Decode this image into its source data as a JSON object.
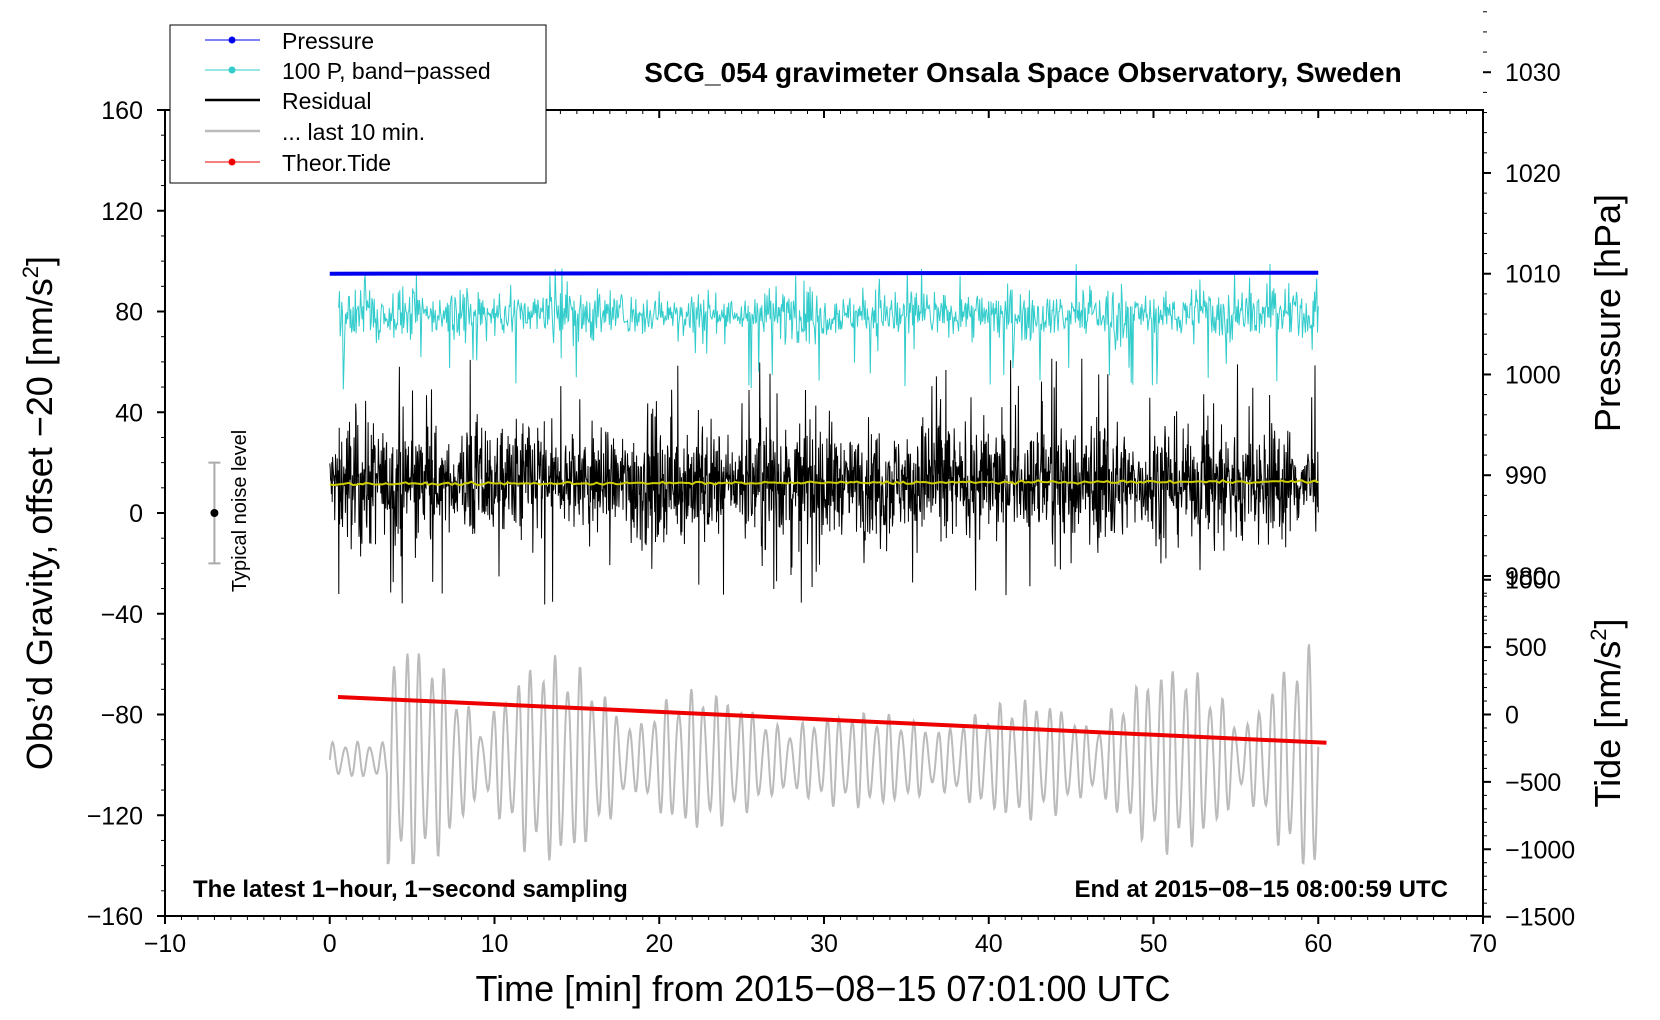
{
  "chart_data": {
    "type": "line",
    "title": "SCG_054 gravimeter Onsala Space Observatory, Sweden",
    "xlabel": "Time [min] from 2015−08−15 07:01:00 UTC",
    "ylabel_left": "Obs’d Gravity, offset −20 [nm/s",
    "ylabel_left_sup": "2",
    "ylabel_left_close": "]",
    "ylabel_right_top": "Pressure [hPa]",
    "ylabel_right_bottom": "Tide [nm/s",
    "ylabel_right_bottom_sup": "2",
    "ylabel_right_bottom_close": "]",
    "xlim": [
      -10,
      70
    ],
    "ylim_left": [
      -160,
      160
    ],
    "x_ticks": [
      {
        "v": -10,
        "label": "−10"
      },
      {
        "v": 0,
        "label": "0"
      },
      {
        "v": 10,
        "label": "10"
      },
      {
        "v": 20,
        "label": "20"
      },
      {
        "v": 30,
        "label": "30"
      },
      {
        "v": 40,
        "label": "40"
      },
      {
        "v": 50,
        "label": "50"
      },
      {
        "v": 60,
        "label": "60"
      },
      {
        "v": 70,
        "label": "70"
      }
    ],
    "y_ticks_left": [
      {
        "v": 160,
        "label": "160"
      },
      {
        "v": 120,
        "label": "120"
      },
      {
        "v": 80,
        "label": "80"
      },
      {
        "v": 40,
        "label": "40"
      },
      {
        "v": 0,
        "label": "0"
      },
      {
        "v": -40,
        "label": "−40"
      },
      {
        "v": -80,
        "label": "−80"
      },
      {
        "v": -120,
        "label": "−120"
      },
      {
        "v": -160,
        "label": "−160"
      }
    ],
    "pressure_axis": {
      "ticks": [
        {
          "v": 1030,
          "label": "1030"
        },
        {
          "v": 1020,
          "label": "1020"
        },
        {
          "v": 1010,
          "label": "1010"
        },
        {
          "v": 1000,
          "label": "1000"
        },
        {
          "v": 990,
          "label": "990"
        },
        {
          "v": 980,
          "label": "980"
        }
      ],
      "ref_hpa": 1010,
      "ref_grav": 95,
      "grav_per_hpa": 4.0
    },
    "tide_axis": {
      "ticks": [
        {
          "v": 1000,
          "label": "1000"
        },
        {
          "v": 500,
          "label": "500"
        },
        {
          "v": 0,
          "label": "0"
        },
        {
          "v": -500,
          "label": "−500"
        },
        {
          "v": -1000,
          "label": "−1000"
        },
        {
          "v": -1500,
          "label": "−1500"
        }
      ],
      "ref_tide": 0,
      "ref_grav": -80,
      "grav_per_unit": 0.0535
    },
    "legend": [
      {
        "label": "Pressure",
        "color": "#0000ee",
        "marker": true
      },
      {
        "label": "100 P, band−passed",
        "color": "#33cccc",
        "marker": true
      },
      {
        "label": "Residual",
        "color": "#000000",
        "marker": false
      },
      {
        "label": "... last 10 min.",
        "color": "#bbbbbb",
        "marker": false
      },
      {
        "label": "Theor.Tide",
        "color": "#ee0000",
        "marker": true
      }
    ],
    "legend_position": "top-left",
    "series": [
      {
        "name": "Pressure",
        "axis": "pressure",
        "color": "#0000ee",
        "x": [
          0,
          60
        ],
        "values": [
          1010.0,
          1010.1
        ]
      },
      {
        "name": "100 P, band-passed",
        "axis": "left",
        "color": "#33cccc",
        "x_range": [
          0.5,
          60
        ],
        "center": 79,
        "amplitude_max": 30
      },
      {
        "name": "Residual",
        "axis": "left",
        "color": "#000000",
        "x_range": [
          0,
          60
        ],
        "center": 12,
        "range": [
          -47,
          72
        ]
      },
      {
        "name": "Residual mean",
        "axis": "left",
        "color": "#cccc00",
        "x": [
          0,
          60
        ],
        "values": [
          11.5,
          12.5
        ]
      },
      {
        "name": "... last 10 min.",
        "axis": "left",
        "color": "#bbbbbb",
        "x_range": [
          0,
          60
        ],
        "center": -98,
        "range": [
          -139,
          -48
        ]
      },
      {
        "name": "Theor.Tide",
        "axis": "tide",
        "color": "#ee0000",
        "x": [
          0.5,
          60.5
        ],
        "values": [
          130,
          -210
        ]
      }
    ],
    "noise_bar": {
      "x": -7,
      "center": 0,
      "low": -20,
      "high": 20,
      "label": "Typical noise level"
    },
    "annotation_left": "The latest 1−hour, 1−second sampling",
    "annotation_right": "End at 2015−08−15 08:00:59 UTC"
  }
}
